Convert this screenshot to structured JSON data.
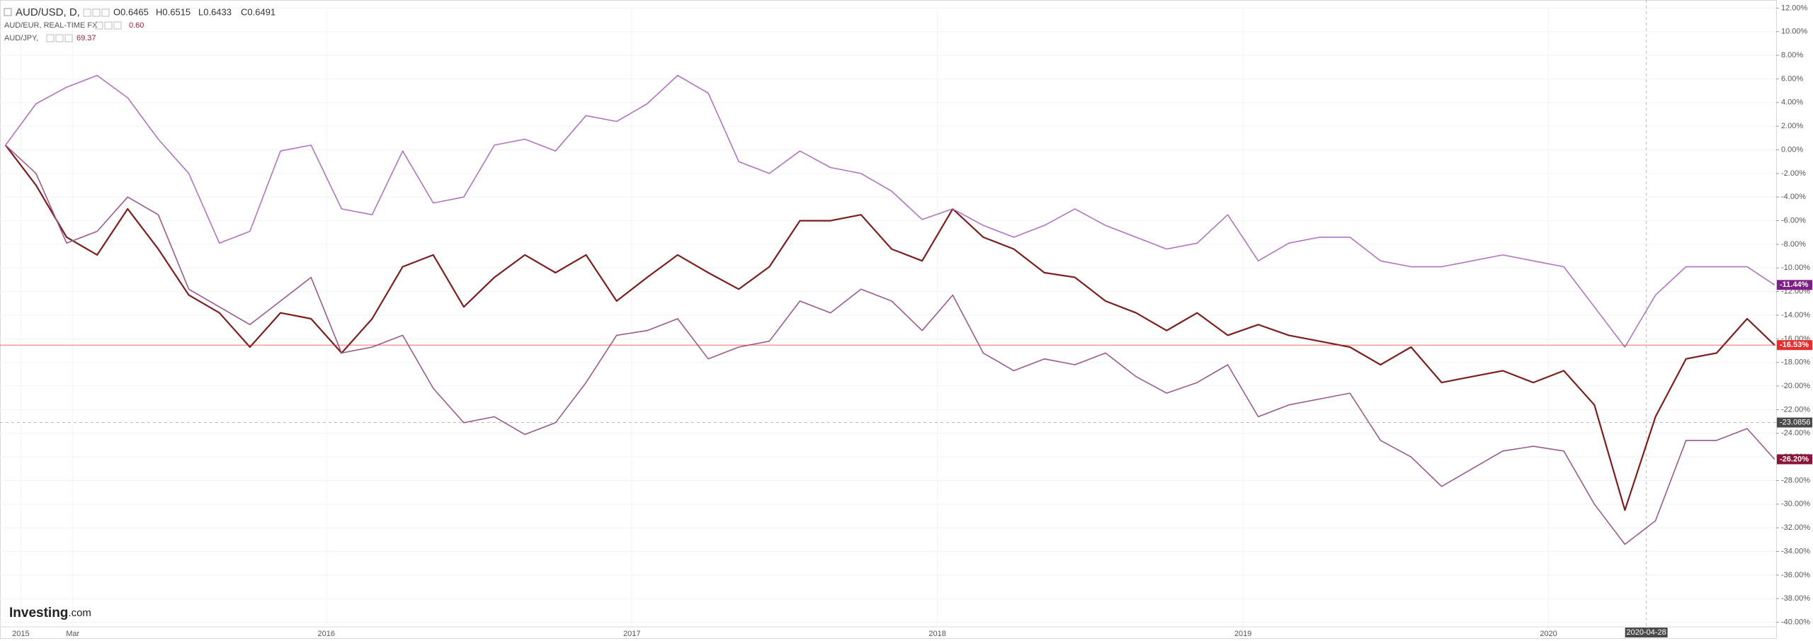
{
  "chart_data": {
    "type": "line",
    "header": "AUD/USD, D,",
    "watermark": [
      "Investing",
      ".com"
    ],
    "x": [
      2014.95,
      2015.05,
      2015.15,
      2015.25,
      2015.35,
      2015.45,
      2015.55,
      2015.65,
      2015.75,
      2015.85,
      2015.95,
      2016.05,
      2016.15,
      2016.25,
      2016.35,
      2016.45,
      2016.55,
      2016.65,
      2016.75,
      2016.85,
      2016.95,
      2017.05,
      2017.15,
      2017.25,
      2017.35,
      2017.45,
      2017.55,
      2017.65,
      2017.75,
      2017.85,
      2017.95,
      2018.05,
      2018.15,
      2018.25,
      2018.35,
      2018.45,
      2018.55,
      2018.65,
      2018.75,
      2018.85,
      2018.95,
      2019.05,
      2019.15,
      2019.25,
      2019.35,
      2019.45,
      2019.55,
      2019.65,
      2019.75,
      2019.85,
      2019.95,
      2020.05,
      2020.15,
      2020.25,
      2020.35,
      2020.45,
      2020.55,
      2020.65,
      2020.74
    ],
    "series": [
      {
        "name": "AUD/USD, D,",
        "color": "#7b1e1e",
        "quote": [
          "O0.6465",
          "H0.6515",
          "L0.6433",
          "C0.6491"
        ],
        "label_color": "#e3302f",
        "last_label": "-16.53%",
        "values": [
          0.4,
          -3,
          -7.4,
          -8.9,
          -5,
          -8.4,
          -12.3,
          -13.8,
          -16.7,
          -13.8,
          -14.3,
          -17.2,
          -14.3,
          -9.9,
          -8.9,
          -13.3,
          -10.8,
          -8.9,
          -10.4,
          -8.9,
          -12.8,
          -10.8,
          -8.9,
          -10.4,
          -11.8,
          -9.9,
          -6,
          -6,
          -5.5,
          -8.4,
          -9.4,
          -5,
          -7.4,
          -8.4,
          -10.4,
          -10.8,
          -12.8,
          -13.8,
          -15.3,
          -13.8,
          -15.7,
          -14.8,
          -15.7,
          -16.2,
          -16.7,
          -18.2,
          -16.7,
          -19.7,
          -19.2,
          -18.7,
          -19.7,
          -18.7,
          -21.6,
          -30.5,
          -22.6,
          -17.7,
          -17.2,
          -14.3,
          -16.53
        ]
      },
      {
        "name": "AUD/EUR, REAL-TIME FX",
        "color": "#b273c0",
        "quote": "0.60",
        "label_color": "#7d1d86",
        "last_label": "-11.44%",
        "values": [
          0.4,
          3.9,
          5.3,
          6.3,
          4.4,
          0.9,
          -2,
          -7.9,
          -6.9,
          -0.1,
          0.4,
          -5,
          -5.5,
          -0.1,
          -4.5,
          -4,
          0.4,
          0.9,
          -0.1,
          2.9,
          2.4,
          3.9,
          6.3,
          4.8,
          -1,
          -2,
          -0.1,
          -1.5,
          -2,
          -3.5,
          -5.9,
          -5,
          -6.4,
          -7.4,
          -6.4,
          -5,
          -6.4,
          -7.4,
          -8.4,
          -7.9,
          -5.5,
          -9.4,
          -7.9,
          -7.4,
          -7.4,
          -9.4,
          -9.9,
          -9.9,
          -9.4,
          -8.9,
          -9.4,
          -9.9,
          -13.3,
          -16.7,
          -12.3,
          -9.9,
          -9.9,
          -9.9,
          -11.44
        ]
      },
      {
        "name": "AUD/JPY,",
        "color": "#9b5a8c",
        "quote": "69.37",
        "label_color": "#8a1538",
        "last_label": "-26.20%",
        "values": [
          0.4,
          -2,
          -7.9,
          -6.9,
          -4,
          -5.5,
          -11.8,
          -13.3,
          -14.8,
          -12.8,
          -10.8,
          -17.2,
          -16.7,
          -15.7,
          -20.2,
          -23.1,
          -22.6,
          -24.1,
          -23.1,
          -19.7,
          -15.7,
          -15.3,
          -14.3,
          -17.7,
          -16.7,
          -16.2,
          -12.8,
          -13.8,
          -11.8,
          -12.8,
          -15.3,
          -12.3,
          -17.2,
          -18.7,
          -17.7,
          -18.2,
          -17.2,
          -19.2,
          -20.6,
          -19.7,
          -18.2,
          -22.6,
          -21.6,
          -21.1,
          -20.6,
          -24.6,
          -26,
          -28.5,
          -27,
          -25.5,
          -25.1,
          -25.5,
          -30,
          -33.4,
          -31.4,
          -24.6,
          -24.6,
          -23.6,
          -26.2
        ]
      }
    ],
    "xlim": [
      2014.932,
      2020.745
    ],
    "xticks": [
      2015,
      {
        "value": 2015.17,
        "label": "Mar"
      },
      2016,
      2017,
      2018,
      2019,
      2020
    ],
    "ylim": [
      -40,
      12
    ],
    "yticks": [
      {
        "value": 12,
        "label": "12.00%"
      },
      {
        "value": 10,
        "label": "10.00%"
      },
      {
        "value": 8,
        "label": "8.00%"
      },
      {
        "value": 6,
        "label": "6.00%"
      },
      {
        "value": 4,
        "label": "4.00%"
      },
      {
        "value": 2,
        "label": "2.00%"
      },
      {
        "value": 0,
        "label": "0.00%"
      },
      {
        "value": -2,
        "label": "-2.00%"
      },
      {
        "value": -4,
        "label": "-4.00%"
      },
      {
        "value": -6,
        "label": "-6.00%"
      },
      {
        "value": -8,
        "label": "-8.00%"
      },
      {
        "value": -10,
        "label": "-10.00%"
      },
      {
        "value": -12,
        "label": "-12.00%"
      },
      {
        "value": -14,
        "label": "-14.00%"
      },
      {
        "value": -16,
        "label": "-16.00%"
      },
      {
        "value": -18,
        "label": "-18.00%"
      },
      {
        "value": -20,
        "label": "-20.00%"
      },
      {
        "value": -22,
        "label": "-22.00%"
      },
      {
        "value": -24,
        "label": "-24.00%"
      },
      {
        "value": -26,
        "label": "-26.00%"
      },
      {
        "value": -28,
        "label": "-28.00%"
      },
      {
        "value": -30,
        "label": "-30.00%"
      },
      {
        "value": -32,
        "label": "-32.00%"
      },
      {
        "value": -34,
        "label": "-34.00%"
      },
      {
        "value": -36,
        "label": "-36.00%"
      },
      {
        "value": -38,
        "label": "-38.00%"
      },
      {
        "value": -40,
        "label": "-40.00%"
      }
    ],
    "grid": true,
    "crosshair": {
      "x": {
        "value": 2020.32,
        "label": "2020-04-28"
      },
      "y": -23.0856
    }
  }
}
